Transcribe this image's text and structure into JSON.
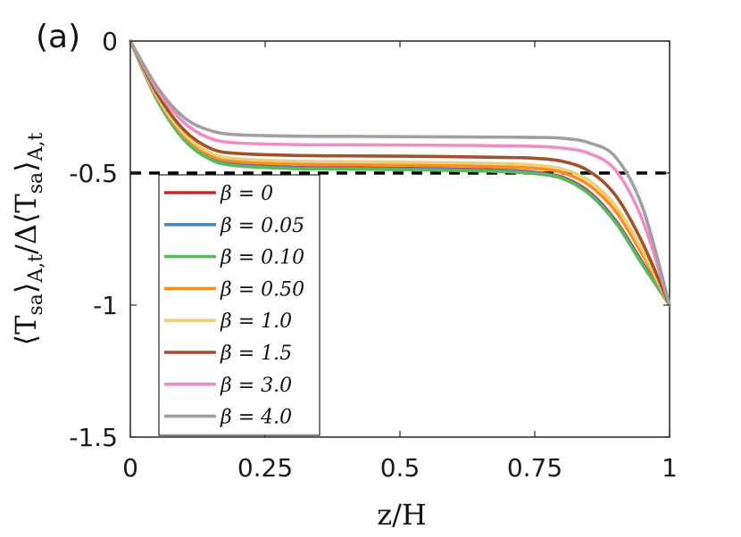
{
  "panel_label": "(a)",
  "chart_data": {
    "type": "line",
    "xlabel": "z/H",
    "ylabel": "⟨T_sa⟩_A,t / Δ⟨T_sa⟩_A,t",
    "ylabel_parts": {
      "t1": "⟨T",
      "s1": "sa",
      "t2": "⟩",
      "s2": "A,t",
      "t3": "/Δ⟨T",
      "s3": "sa",
      "t4": "⟩",
      "s4": "A,t"
    },
    "xlim": [
      0,
      1
    ],
    "ylim": [
      -1.5,
      0
    ],
    "xticks": [
      {
        "value": 0,
        "label": "0"
      },
      {
        "value": 0.25,
        "label": "0.25"
      },
      {
        "value": 0.5,
        "label": "0.5"
      },
      {
        "value": 0.75,
        "label": "0.75"
      },
      {
        "value": 1,
        "label": "1"
      }
    ],
    "yticks": [
      {
        "value": 0,
        "label": "0"
      },
      {
        "value": -0.5,
        "label": "-0.5"
      },
      {
        "value": -1,
        "label": "-1"
      },
      {
        "value": -1.5,
        "label": "-1.5"
      }
    ],
    "reference_line": {
      "y": -0.5,
      "style": "dashed",
      "color": "#000000"
    },
    "x": [
      0,
      0.05,
      0.1,
      0.15,
      0.2,
      0.3,
      0.4,
      0.5,
      0.6,
      0.7,
      0.75,
      0.8,
      0.85,
      0.9,
      0.95,
      1.0
    ],
    "series": [
      {
        "name": "β = 0",
        "color": "#d62728",
        "values": [
          0,
          -0.22,
          -0.37,
          -0.445,
          -0.468,
          -0.478,
          -0.48,
          -0.482,
          -0.485,
          -0.49,
          -0.497,
          -0.515,
          -0.57,
          -0.68,
          -0.84,
          -1.0
        ]
      },
      {
        "name": "β = 0.05",
        "color": "#4a86b8",
        "values": [
          0,
          -0.222,
          -0.372,
          -0.447,
          -0.47,
          -0.48,
          -0.482,
          -0.484,
          -0.487,
          -0.492,
          -0.499,
          -0.518,
          -0.575,
          -0.685,
          -0.845,
          -1.0
        ]
      },
      {
        "name": "β = 0.10",
        "color": "#5cb85c",
        "values": [
          0,
          -0.225,
          -0.375,
          -0.45,
          -0.473,
          -0.483,
          -0.485,
          -0.487,
          -0.49,
          -0.495,
          -0.502,
          -0.52,
          -0.578,
          -0.688,
          -0.848,
          -1.0
        ]
      },
      {
        "name": "β = 0.50",
        "color": "#ff8c1a",
        "values": [
          0,
          -0.215,
          -0.36,
          -0.435,
          -0.457,
          -0.466,
          -0.468,
          -0.47,
          -0.472,
          -0.477,
          -0.482,
          -0.497,
          -0.545,
          -0.645,
          -0.81,
          -1.0
        ]
      },
      {
        "name": "β = 1.0",
        "color": "#e8d080",
        "values": [
          0,
          -0.21,
          -0.352,
          -0.425,
          -0.446,
          -0.455,
          -0.457,
          -0.459,
          -0.461,
          -0.465,
          -0.47,
          -0.484,
          -0.528,
          -0.625,
          -0.795,
          -1.0
        ]
      },
      {
        "name": "β = 1.5",
        "color": "#a0522d",
        "values": [
          0,
          -0.2,
          -0.338,
          -0.408,
          -0.426,
          -0.433,
          -0.435,
          -0.436,
          -0.438,
          -0.441,
          -0.444,
          -0.455,
          -0.492,
          -0.585,
          -0.765,
          -1.0
        ]
      },
      {
        "name": "β = 3.0",
        "color": "#f08cc8",
        "values": [
          0,
          -0.185,
          -0.31,
          -0.37,
          -0.386,
          -0.392,
          -0.393,
          -0.394,
          -0.395,
          -0.397,
          -0.399,
          -0.405,
          -0.425,
          -0.49,
          -0.68,
          -1.0
        ]
      },
      {
        "name": "β = 4.0",
        "color": "#a0a0a0",
        "values": [
          0,
          -0.175,
          -0.29,
          -0.34,
          -0.355,
          -0.36,
          -0.361,
          -0.362,
          -0.363,
          -0.364,
          -0.365,
          -0.368,
          -0.385,
          -0.44,
          -0.63,
          -1.0
        ]
      }
    ],
    "legend_location": "left-center"
  }
}
